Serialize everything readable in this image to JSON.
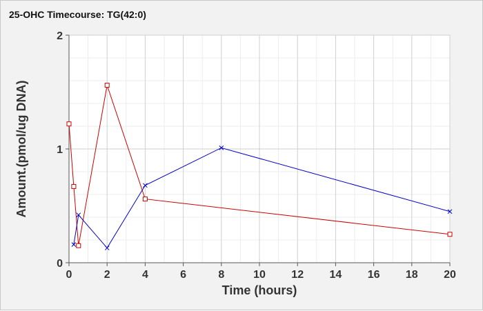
{
  "chart_data": {
    "type": "line",
    "title": "25-OHC Timecourse: TG(42:0)",
    "xlabel": "Time (hours)",
    "ylabel": "Amount.(pmol/ug DNA)",
    "xlim": [
      0,
      20
    ],
    "ylim": [
      0,
      2
    ],
    "x_ticks": [
      0,
      2,
      4,
      6,
      8,
      10,
      12,
      14,
      16,
      18,
      20
    ],
    "y_ticks": [
      0,
      1,
      2
    ],
    "grid": true,
    "series": [
      {
        "color": "#cc0000",
        "marker": "square",
        "x": [
          0,
          0.25,
          0.5,
          2,
          4,
          20
        ],
        "y": [
          1.22,
          0.67,
          0.15,
          1.56,
          0.56,
          0.25
        ]
      },
      {
        "color": "#0000cc",
        "marker": "x",
        "x": [
          0.25,
          0.5,
          2,
          4,
          8,
          20
        ],
        "y": [
          0.16,
          0.42,
          0.13,
          0.68,
          1.01,
          0.45
        ]
      }
    ]
  }
}
